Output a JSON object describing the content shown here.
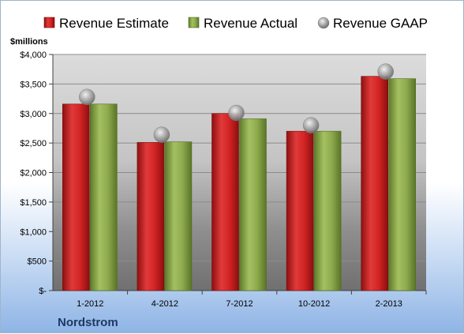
{
  "chart_data": {
    "type": "bar",
    "unit_label": "$millions",
    "company": "Nordstrom",
    "categories": [
      "1-2012",
      "4-2012",
      "7-2012",
      "10-2012",
      "2-2013"
    ],
    "series": [
      {
        "name": "Revenue Estimate",
        "kind": "bar",
        "color": "#cc1f1f",
        "values": [
          3160,
          2510,
          3000,
          2700,
          3630
        ]
      },
      {
        "name": "Revenue Actual",
        "kind": "bar",
        "color": "#8aa84b",
        "values": [
          3160,
          2520,
          2910,
          2700,
          3590
        ]
      },
      {
        "name": "Revenue GAAP",
        "kind": "marker",
        "color": "#a0a0a0",
        "values": [
          3280,
          2640,
          3010,
          2800,
          3710
        ]
      }
    ],
    "ylim": [
      0,
      4000
    ],
    "yticks": [
      {
        "value": 0,
        "label": "$-"
      },
      {
        "value": 500,
        "label": "$500"
      },
      {
        "value": 1000,
        "label": "$1,000"
      },
      {
        "value": 1500,
        "label": "$1,500"
      },
      {
        "value": 2000,
        "label": "$2,000"
      },
      {
        "value": 2500,
        "label": "$2,500"
      },
      {
        "value": 3000,
        "label": "$3,000"
      },
      {
        "value": 3500,
        "label": "$3,500"
      },
      {
        "value": 4000,
        "label": "$4,000"
      }
    ],
    "grid": true,
    "legend_position": "top"
  }
}
